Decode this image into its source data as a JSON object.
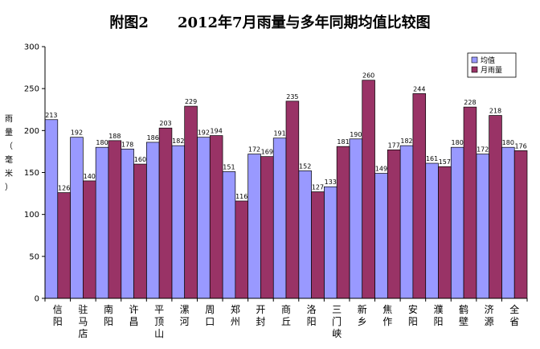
{
  "chart_data": {
    "type": "bar",
    "title": "附图2　　2012年7月雨量与多年同期均值比较图",
    "ylabel_chars": [
      "雨",
      "量",
      "（",
      "毫",
      "米",
      "）"
    ],
    "ylim": [
      0,
      300
    ],
    "yticks": [
      0,
      50,
      100,
      150,
      200,
      250,
      300
    ],
    "grid": false,
    "legend_position": "top-right",
    "categories": [
      "信阳",
      "驻马店",
      "南阳",
      "许昌",
      "平顶山",
      "漯河",
      "周口",
      "郑州",
      "开封",
      "商丘",
      "洛阳",
      "三门峡",
      "新乡",
      "焦作",
      "安阳",
      "濮阳",
      "鹤壁",
      "济源",
      "全省"
    ],
    "series": [
      {
        "name": "均值",
        "color": "#9999ff",
        "values": [
          213,
          192,
          180,
          178,
          186,
          182,
          192,
          151,
          172,
          191,
          152,
          133,
          190,
          149,
          182,
          161,
          180,
          172,
          180
        ]
      },
      {
        "name": "月雨量",
        "color": "#993366",
        "values": [
          126,
          140,
          188,
          160,
          203,
          229,
          194,
          116,
          169,
          235,
          127,
          181,
          260,
          177,
          244,
          157,
          228,
          218,
          176
        ]
      }
    ]
  }
}
